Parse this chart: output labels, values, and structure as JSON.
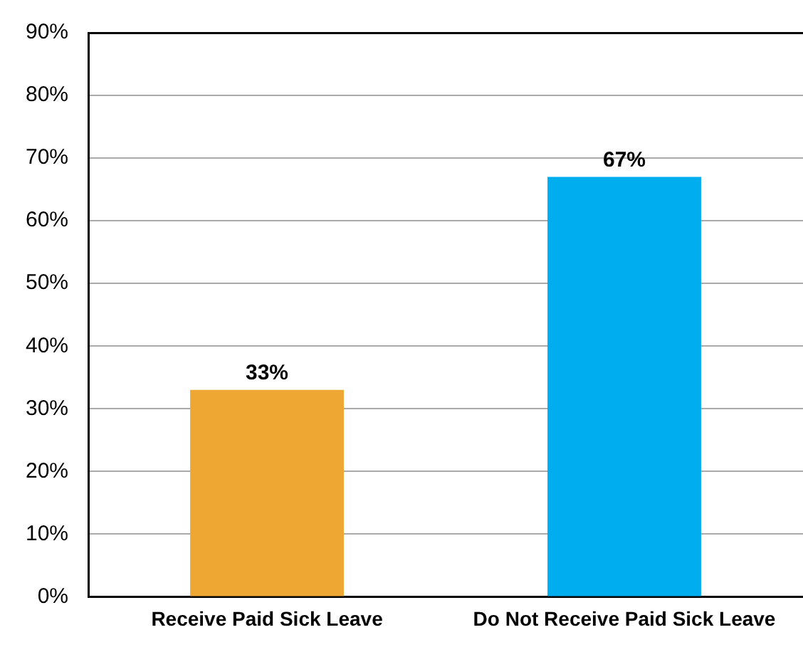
{
  "chart_data": {
    "type": "bar",
    "categories": [
      "Receive Paid Sick Leave",
      "Do Not Receive Paid Sick Leave"
    ],
    "values": [
      33,
      67
    ],
    "colors": [
      "#eea733",
      "#00adee"
    ],
    "value_labels": [
      "33%",
      "67%"
    ],
    "ylim": [
      0,
      90
    ],
    "yticks": [
      {
        "value": 0,
        "label": "0%"
      },
      {
        "value": 10,
        "label": "10%"
      },
      {
        "value": 20,
        "label": "20%"
      },
      {
        "value": 30,
        "label": "30%"
      },
      {
        "value": 40,
        "label": "40%"
      },
      {
        "value": 50,
        "label": "50%"
      },
      {
        "value": 60,
        "label": "60%"
      },
      {
        "value": 70,
        "label": "70%"
      },
      {
        "value": 80,
        "label": "80%"
      },
      {
        "value": 90,
        "label": "90%"
      }
    ],
    "grid": "y",
    "legend": false
  }
}
